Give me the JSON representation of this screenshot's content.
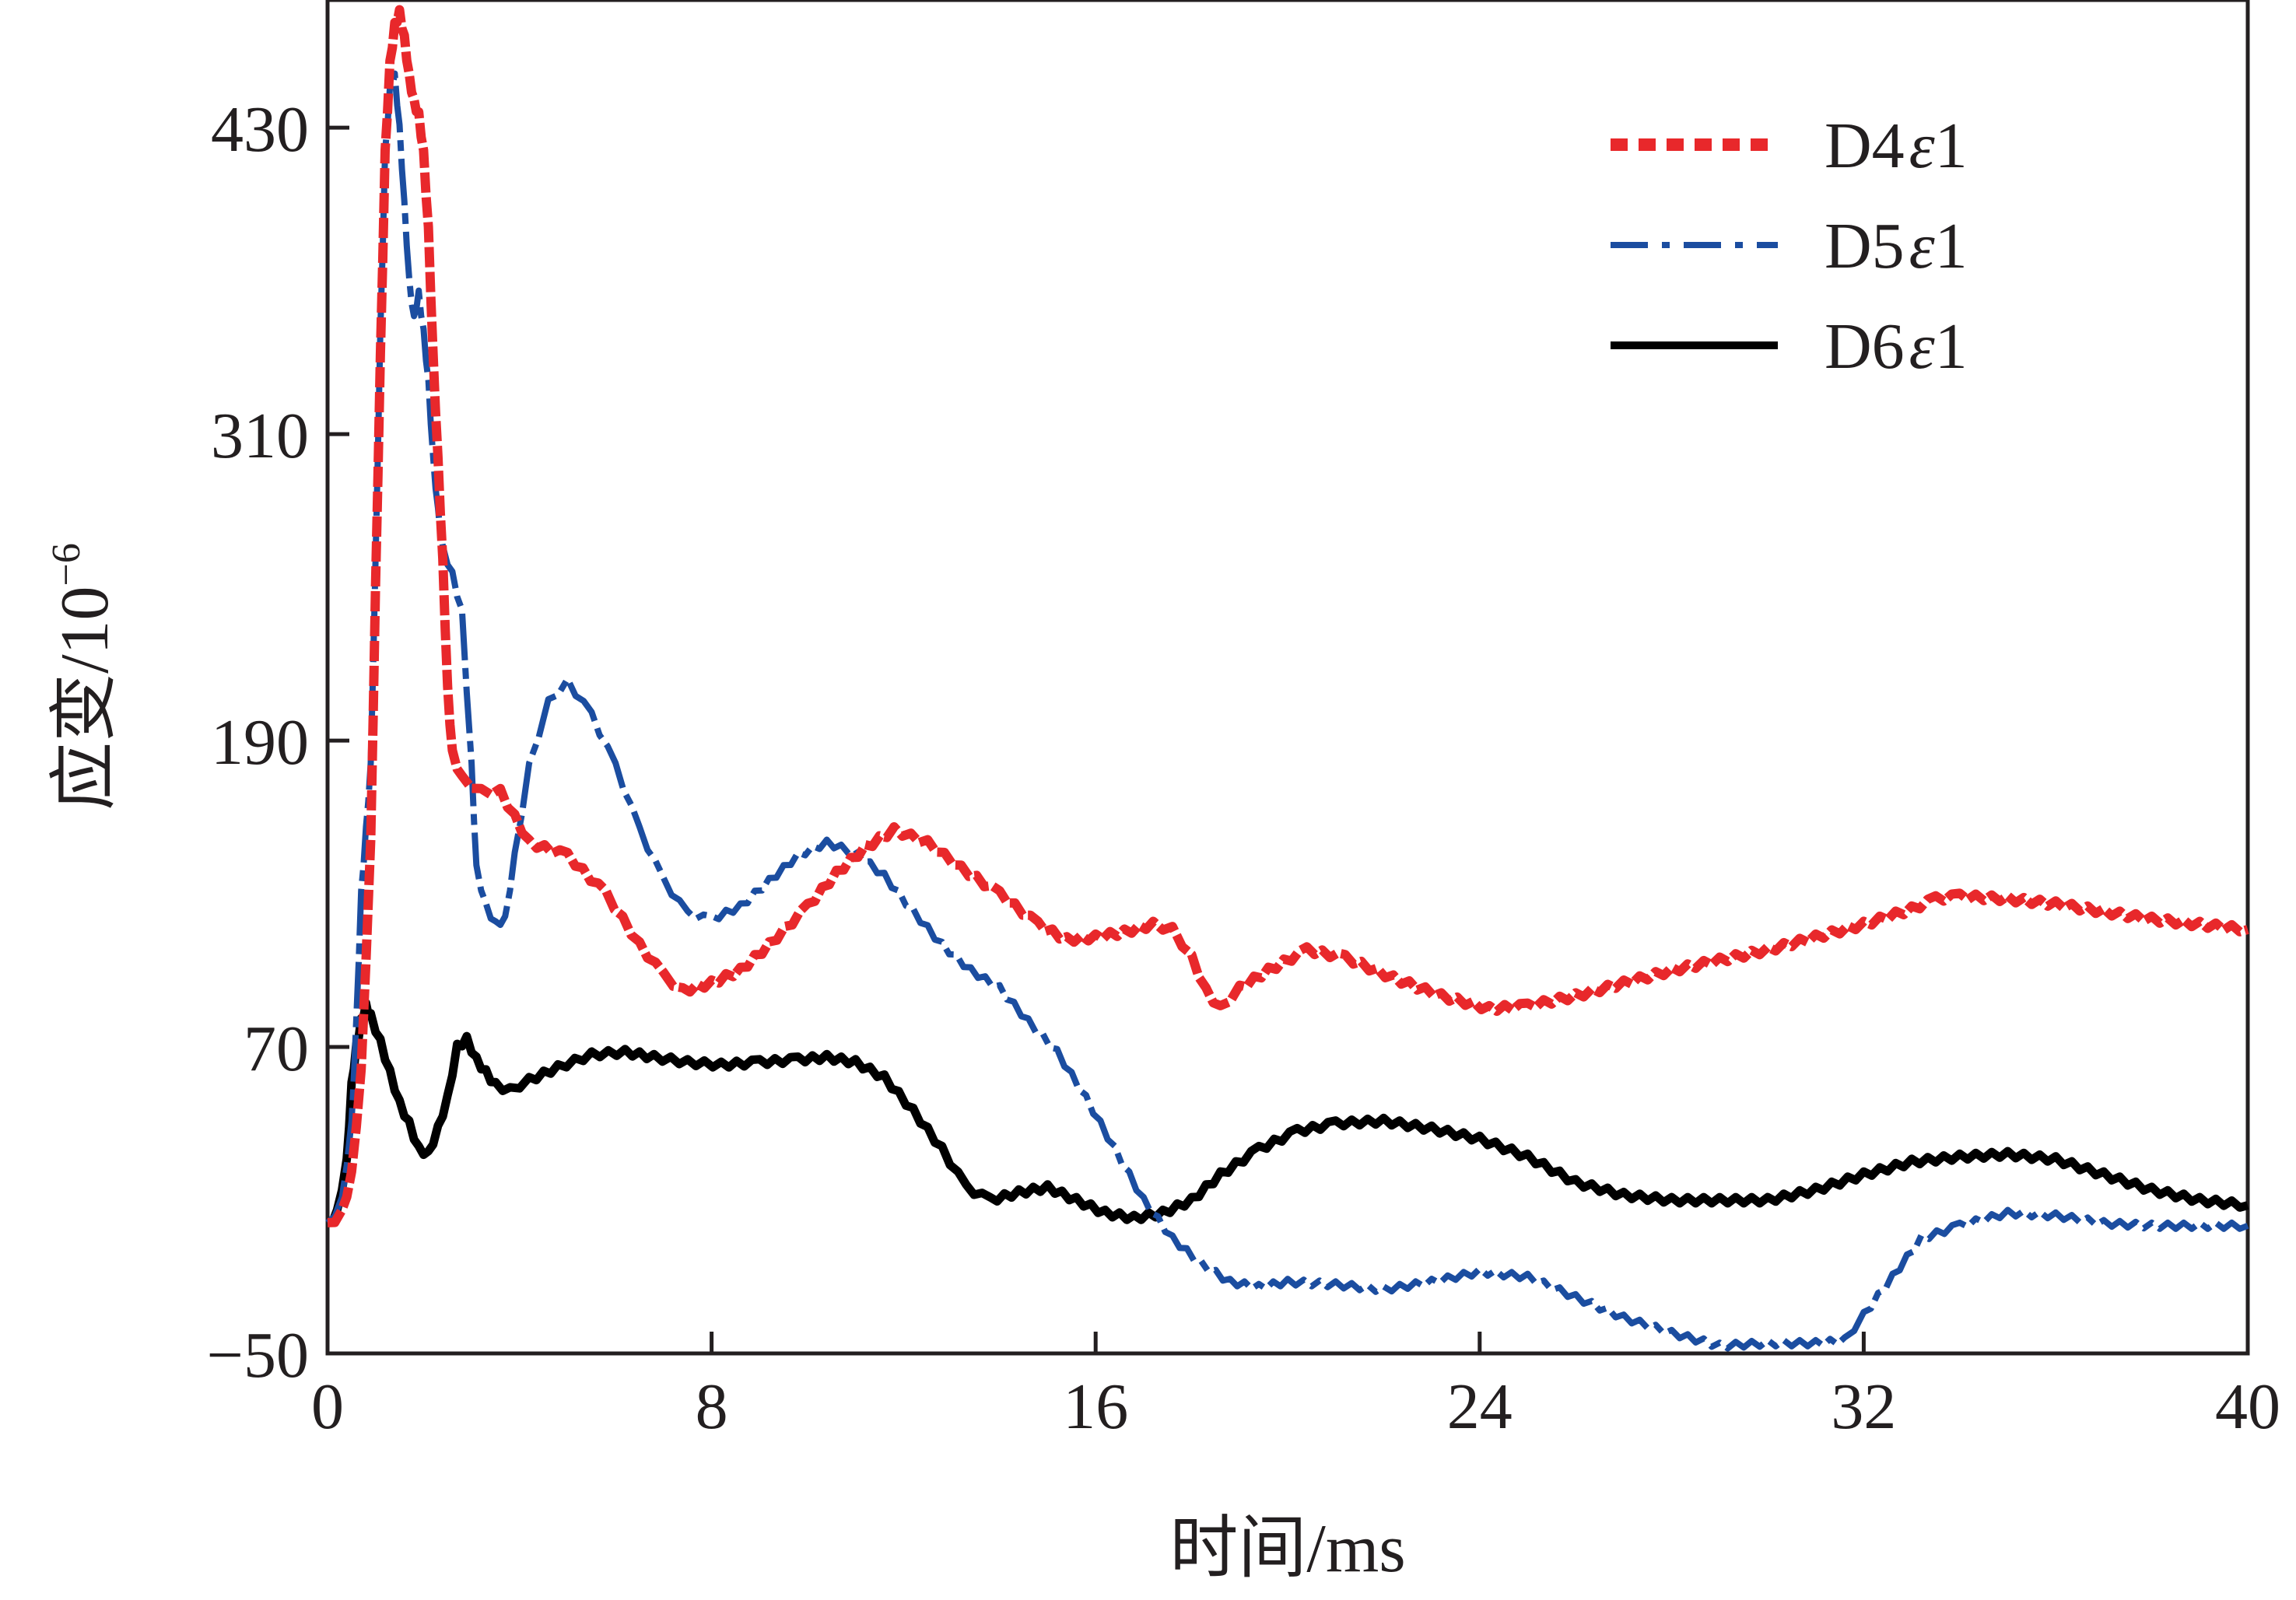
{
  "chart_data": {
    "type": "line",
    "xlabel": "时间/ms",
    "ylabel_main": "应变/10",
    "ylabel_exp": "−6",
    "xlim": [
      0,
      40
    ],
    "ylim": [
      -50,
      480
    ],
    "xticks": [
      0,
      8,
      16,
      24,
      32,
      40
    ],
    "xtick_labels": [
      "0",
      "8",
      "16",
      "24",
      "32",
      "40"
    ],
    "yticks": [
      -50,
      70,
      190,
      310,
      430
    ],
    "ytick_labels": [
      "−50",
      "70",
      "190",
      "310",
      "430"
    ],
    "legend_position": "top-right",
    "series": [
      {
        "name": "D4ε1",
        "legend_main": "D4",
        "legend_eps": "ε",
        "legend_suffix": "1",
        "color": "#e8282b",
        "style": "dotted",
        "points": [
          [
            0,
            0
          ],
          [
            0.3,
            5
          ],
          [
            0.5,
            20
          ],
          [
            0.7,
            60
          ],
          [
            0.9,
            150
          ],
          [
            1.0,
            250
          ],
          [
            1.1,
            340
          ],
          [
            1.2,
            420
          ],
          [
            1.3,
            455
          ],
          [
            1.4,
            470
          ],
          [
            1.5,
            475
          ],
          [
            1.6,
            465
          ],
          [
            1.7,
            450
          ],
          [
            1.8,
            440
          ],
          [
            1.9,
            435
          ],
          [
            2.0,
            420
          ],
          [
            2.1,
            390
          ],
          [
            2.2,
            340
          ],
          [
            2.3,
            300
          ],
          [
            2.4,
            260
          ],
          [
            2.5,
            210
          ],
          [
            2.6,
            185
          ],
          [
            2.8,
            175
          ],
          [
            3.2,
            170
          ],
          [
            3.6,
            170
          ],
          [
            3.9,
            160
          ],
          [
            4.2,
            150
          ],
          [
            5.0,
            145
          ],
          [
            5.8,
            130
          ],
          [
            6.5,
            110
          ],
          [
            7.0,
            98
          ],
          [
            7.4,
            92
          ],
          [
            8.0,
            95
          ],
          [
            8.6,
            100
          ],
          [
            9.2,
            110
          ],
          [
            10.0,
            125
          ],
          [
            10.6,
            138
          ],
          [
            11.2,
            148
          ],
          [
            11.8,
            155
          ],
          [
            12.5,
            150
          ],
          [
            13.2,
            140
          ],
          [
            14.0,
            130
          ],
          [
            14.8,
            118
          ],
          [
            15.4,
            112
          ],
          [
            16.0,
            113
          ],
          [
            16.6,
            115
          ],
          [
            17.2,
            118
          ],
          [
            17.6,
            116
          ],
          [
            18.0,
            105
          ],
          [
            18.3,
            92
          ],
          [
            18.6,
            85
          ],
          [
            19.0,
            93
          ],
          [
            19.6,
            100
          ],
          [
            20.4,
            108
          ],
          [
            21.2,
            105
          ],
          [
            22.2,
            97
          ],
          [
            23.2,
            90
          ],
          [
            24.2,
            85
          ],
          [
            25.0,
            86
          ],
          [
            26.0,
            90
          ],
          [
            27.0,
            95
          ],
          [
            28.0,
            100
          ],
          [
            29.0,
            104
          ],
          [
            30.0,
            108
          ],
          [
            31.0,
            113
          ],
          [
            32.0,
            118
          ],
          [
            33.0,
            124
          ],
          [
            33.5,
            128
          ],
          [
            34.0,
            129
          ],
          [
            35.0,
            128
          ],
          [
            36.0,
            126
          ],
          [
            37.0,
            123
          ],
          [
            38.0,
            120
          ],
          [
            39.0,
            118
          ],
          [
            40.0,
            116
          ]
        ]
      },
      {
        "name": "D5ε1",
        "legend_main": "D5",
        "legend_eps": "ε",
        "legend_suffix": "1",
        "color": "#1b4da0",
        "style": "dashdot",
        "points": [
          [
            0,
            0
          ],
          [
            0.3,
            10
          ],
          [
            0.5,
            40
          ],
          [
            0.6,
            80
          ],
          [
            0.7,
            130
          ],
          [
            0.8,
            155
          ],
          [
            0.9,
            180
          ],
          [
            1.0,
            260
          ],
          [
            1.1,
            350
          ],
          [
            1.2,
            420
          ],
          [
            1.3,
            445
          ],
          [
            1.4,
            450
          ],
          [
            1.5,
            430
          ],
          [
            1.6,
            400
          ],
          [
            1.7,
            370
          ],
          [
            1.8,
            355
          ],
          [
            1.9,
            365
          ],
          [
            2.0,
            350
          ],
          [
            2.1,
            330
          ],
          [
            2.2,
            300
          ],
          [
            2.3,
            280
          ],
          [
            2.4,
            265
          ],
          [
            2.6,
            255
          ],
          [
            2.8,
            240
          ],
          [
            3.0,
            180
          ],
          [
            3.1,
            140
          ],
          [
            3.3,
            125
          ],
          [
            3.5,
            118
          ],
          [
            3.7,
            120
          ],
          [
            3.9,
            145
          ],
          [
            4.2,
            180
          ],
          [
            4.6,
            205
          ],
          [
            5.0,
            213
          ],
          [
            5.5,
            200
          ],
          [
            6.0,
            180
          ],
          [
            6.5,
            155
          ],
          [
            7.0,
            135
          ],
          [
            7.5,
            122
          ],
          [
            8.0,
            120
          ],
          [
            8.6,
            125
          ],
          [
            9.2,
            135
          ],
          [
            9.8,
            145
          ],
          [
            10.4,
            150
          ],
          [
            11.0,
            146
          ],
          [
            11.6,
            137
          ],
          [
            12.2,
            123
          ],
          [
            12.8,
            110
          ],
          [
            13.4,
            100
          ],
          [
            14.0,
            93
          ],
          [
            14.6,
            80
          ],
          [
            15.2,
            68
          ],
          [
            15.8,
            50
          ],
          [
            16.4,
            30
          ],
          [
            17.0,
            10
          ],
          [
            17.6,
            -5
          ],
          [
            18.2,
            -15
          ],
          [
            18.8,
            -22
          ],
          [
            19.4,
            -24
          ],
          [
            20.0,
            -22
          ],
          [
            21.0,
            -23
          ],
          [
            22.0,
            -25
          ],
          [
            23.0,
            -22
          ],
          [
            24.0,
            -18
          ],
          [
            25.0,
            -20
          ],
          [
            26.0,
            -28
          ],
          [
            27.0,
            -36
          ],
          [
            28.0,
            -42
          ],
          [
            29.0,
            -47
          ],
          [
            30.0,
            -46
          ],
          [
            31.0,
            -46
          ],
          [
            31.6,
            -45
          ],
          [
            32.0,
            -35
          ],
          [
            32.6,
            -20
          ],
          [
            33.2,
            -5
          ],
          [
            34.0,
            0
          ],
          [
            35.0,
            5
          ],
          [
            36.0,
            4
          ],
          [
            37.0,
            1
          ],
          [
            38.0,
            0
          ],
          [
            39.0,
            0
          ],
          [
            40.0,
            0
          ]
        ]
      },
      {
        "name": "D6ε1",
        "legend_main": "D6",
        "legend_eps": "ε",
        "legend_suffix": "1",
        "color": "#000000",
        "style": "solid",
        "points": [
          [
            0,
            0
          ],
          [
            0.2,
            5
          ],
          [
            0.4,
            25
          ],
          [
            0.5,
            55
          ],
          [
            0.6,
            70
          ],
          [
            0.7,
            80
          ],
          [
            0.8,
            86
          ],
          [
            0.9,
            82
          ],
          [
            1.1,
            72
          ],
          [
            1.3,
            60
          ],
          [
            1.5,
            48
          ],
          [
            1.7,
            40
          ],
          [
            1.9,
            30
          ],
          [
            2.1,
            28
          ],
          [
            2.3,
            38
          ],
          [
            2.5,
            50
          ],
          [
            2.7,
            70
          ],
          [
            2.9,
            73
          ],
          [
            3.1,
            65
          ],
          [
            3.3,
            60
          ],
          [
            3.5,
            55
          ],
          [
            3.8,
            53
          ],
          [
            4.2,
            57
          ],
          [
            4.8,
            62
          ],
          [
            5.5,
            67
          ],
          [
            6.2,
            68
          ],
          [
            6.8,
            66
          ],
          [
            7.5,
            64
          ],
          [
            8.2,
            63
          ],
          [
            9.0,
            64
          ],
          [
            9.8,
            65
          ],
          [
            10.4,
            66
          ],
          [
            11.0,
            64
          ],
          [
            11.6,
            58
          ],
          [
            12.2,
            45
          ],
          [
            12.8,
            30
          ],
          [
            13.3,
            15
          ],
          [
            13.8,
            10
          ],
          [
            14.4,
            13
          ],
          [
            15.0,
            15
          ],
          [
            15.6,
            10
          ],
          [
            16.2,
            5
          ],
          [
            16.8,
            3
          ],
          [
            17.4,
            5
          ],
          [
            18.0,
            10
          ],
          [
            18.6,
            20
          ],
          [
            19.4,
            30
          ],
          [
            20.2,
            37
          ],
          [
            21.0,
            40
          ],
          [
            22.0,
            41
          ],
          [
            23.0,
            38
          ],
          [
            24.0,
            34
          ],
          [
            25.0,
            27
          ],
          [
            26.0,
            17
          ],
          [
            27.0,
            12
          ],
          [
            28.0,
            10
          ],
          [
            29.0,
            10
          ],
          [
            30.0,
            10
          ],
          [
            31.0,
            14
          ],
          [
            32.0,
            20
          ],
          [
            33.0,
            25
          ],
          [
            34.0,
            27
          ],
          [
            35.0,
            28
          ],
          [
            36.0,
            26
          ],
          [
            37.0,
            20
          ],
          [
            38.0,
            14
          ],
          [
            39.0,
            10
          ],
          [
            40.0,
            8
          ]
        ]
      }
    ]
  }
}
